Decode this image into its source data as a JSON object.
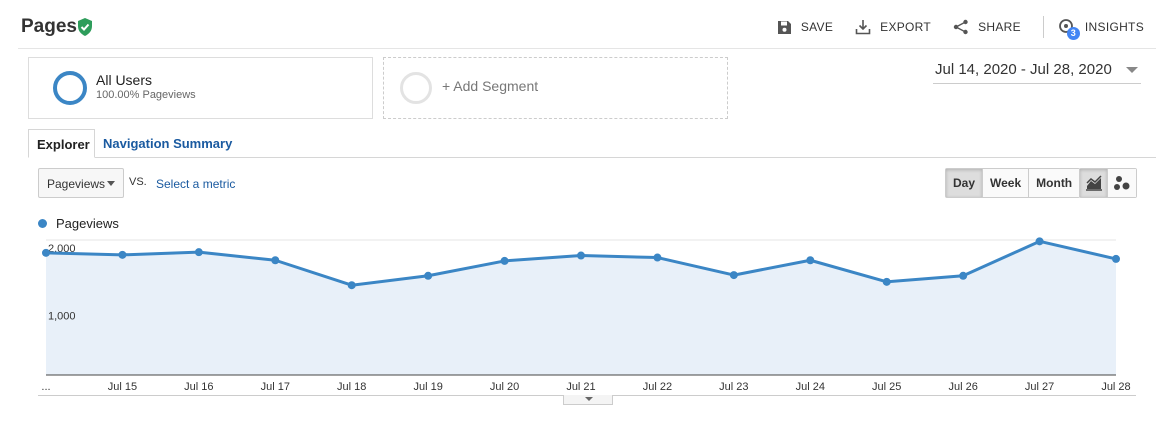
{
  "header": {
    "title": "Pages",
    "actions": {
      "save": "SAVE",
      "export": "EXPORT",
      "share": "SHARE",
      "insights": "INSIGHTS",
      "insights_badge": "3"
    }
  },
  "segments": {
    "all_users": {
      "name": "All Users",
      "detail": "100.00% Pageviews"
    },
    "add_segment": "+ Add Segment"
  },
  "date_range": "Jul 14, 2020 - Jul 28, 2020",
  "tabs": [
    {
      "label": "Explorer",
      "active": true
    },
    {
      "label": "Navigation Summary",
      "active": false
    }
  ],
  "controls": {
    "metric": "Pageviews",
    "vs": "VS.",
    "select_metric": "Select a metric",
    "periods": [
      {
        "label": "Day",
        "active": true
      },
      {
        "label": "Week",
        "active": false
      },
      {
        "label": "Month",
        "active": false
      }
    ],
    "views": [
      {
        "icon": "line-chart-icon",
        "active": true
      },
      {
        "icon": "motion-chart-icon",
        "active": false
      }
    ]
  },
  "colors": {
    "series": "#3b86c5",
    "area": "#e8f0f9",
    "brand_green": "#2e9d5b",
    "link": "#1a5aa0"
  },
  "chart_data": {
    "type": "area",
    "legend_position": "top-left",
    "grid": true,
    "series": [
      {
        "name": "Pageviews",
        "values": [
          1810,
          1780,
          1820,
          1700,
          1330,
          1470,
          1690,
          1770,
          1740,
          1480,
          1700,
          1380,
          1470,
          1980,
          1720
        ]
      }
    ],
    "x": [
      "Jul 14",
      "Jul 15",
      "Jul 16",
      "Jul 17",
      "Jul 18",
      "Jul 19",
      "Jul 20",
      "Jul 21",
      "Jul 22",
      "Jul 23",
      "Jul 24",
      "Jul 25",
      "Jul 26",
      "Jul 27",
      "Jul 28"
    ],
    "x_tick_labels": [
      "...",
      "Jul 15",
      "Jul 16",
      "Jul 17",
      "Jul 18",
      "Jul 19",
      "Jul 20",
      "Jul 21",
      "Jul 22",
      "Jul 23",
      "Jul 24",
      "Jul 25",
      "Jul 26",
      "Jul 27",
      "Jul 28"
    ],
    "y_ticks": [
      {
        "value": 2000,
        "label": "2,000"
      },
      {
        "value": 1000,
        "label": "1,000"
      }
    ],
    "ylim": [
      0,
      2000
    ]
  }
}
